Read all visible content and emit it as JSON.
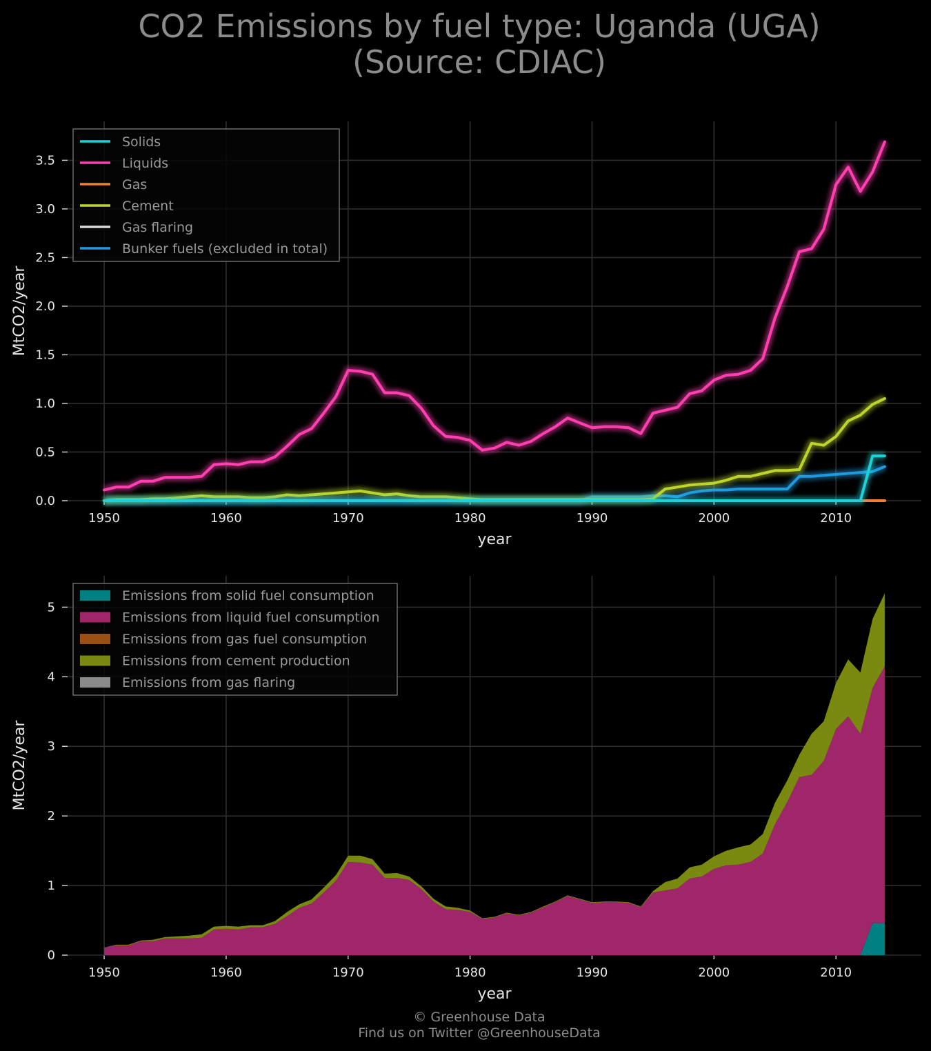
{
  "title": {
    "line1": "CO2 Emissions by fuel type: Uganda (UGA)",
    "line2": "(Source: CDIAC)"
  },
  "credits": {
    "line1": "© Greenhouse Data",
    "line2": "Find us on Twitter @GreenhouseData"
  },
  "colors": {
    "background": "#000000",
    "grid": "#2f2f2f",
    "solids": "#1fd0d8",
    "liquids": "#ff3fb0",
    "gas": "#f07d3a",
    "cement": "#bcd42c",
    "gas_flaring": "#d8d8d8",
    "bunker": "#1e9be0",
    "solid_area": "#008080",
    "liquid_area": "#a0266a",
    "gas_area": "#9a4f14",
    "cement_area": "#7a8a10",
    "flaring_area": "#8a8a8a"
  },
  "chart_data": [
    {
      "type": "line",
      "xlabel": "year",
      "ylabel": "MtCO2/year",
      "xlim": [
        1947,
        2017
      ],
      "ylim": [
        0,
        3.9
      ],
      "xticks": [
        1950,
        1960,
        1970,
        1980,
        1990,
        2000,
        2010
      ],
      "yticks": [
        0.0,
        0.5,
        1.0,
        1.5,
        2.0,
        2.5,
        3.0,
        3.5
      ],
      "ytick_labels": [
        "0.0",
        "0.5",
        "1.0",
        "1.5",
        "2.0",
        "2.5",
        "3.0",
        "3.5"
      ],
      "grid": true,
      "legend_position": "top-left",
      "x": [
        1950,
        1951,
        1952,
        1953,
        1954,
        1955,
        1956,
        1957,
        1958,
        1959,
        1960,
        1961,
        1962,
        1963,
        1964,
        1965,
        1966,
        1967,
        1968,
        1969,
        1970,
        1971,
        1972,
        1973,
        1974,
        1975,
        1976,
        1977,
        1978,
        1979,
        1980,
        1981,
        1982,
        1983,
        1984,
        1985,
        1986,
        1987,
        1988,
        1989,
        1990,
        1991,
        1992,
        1993,
        1994,
        1995,
        1996,
        1997,
        1998,
        1999,
        2000,
        2001,
        2002,
        2003,
        2004,
        2005,
        2006,
        2007,
        2008,
        2009,
        2010,
        2011,
        2012,
        2013,
        2014
      ],
      "series": [
        {
          "name": "Solids",
          "color_key": "solids",
          "values": [
            0,
            0,
            0,
            0,
            0,
            0,
            0,
            0,
            0,
            0,
            0,
            0,
            0,
            0,
            0,
            0,
            0,
            0,
            0,
            0,
            0,
            0,
            0,
            0,
            0,
            0,
            0,
            0,
            0,
            0,
            0,
            0,
            0,
            0,
            0,
            0,
            0,
            0,
            0,
            0,
            0,
            0,
            0,
            0,
            0,
            0,
            0,
            0,
            0,
            0,
            0,
            0,
            0,
            0,
            0,
            0,
            0,
            0,
            0,
            0,
            0,
            0,
            0,
            0.46,
            0.46
          ]
        },
        {
          "name": "Liquids",
          "color_key": "liquids",
          "values": [
            0.11,
            0.14,
            0.14,
            0.2,
            0.2,
            0.24,
            0.24,
            0.24,
            0.25,
            0.37,
            0.38,
            0.37,
            0.4,
            0.4,
            0.45,
            0.56,
            0.68,
            0.74,
            0.9,
            1.07,
            1.34,
            1.33,
            1.3,
            1.11,
            1.11,
            1.08,
            0.95,
            0.77,
            0.66,
            0.65,
            0.62,
            0.52,
            0.54,
            0.6,
            0.57,
            0.61,
            0.69,
            0.76,
            0.85,
            0.8,
            0.75,
            0.76,
            0.76,
            0.75,
            0.69,
            0.9,
            0.93,
            0.96,
            1.1,
            1.13,
            1.24,
            1.29,
            1.3,
            1.34,
            1.46,
            1.88,
            2.2,
            2.56,
            2.59,
            2.79,
            3.25,
            3.43,
            3.18,
            3.38,
            3.69
          ]
        },
        {
          "name": "Gas",
          "color_key": "gas",
          "values": [
            0,
            0,
            0,
            0,
            0,
            0,
            0,
            0,
            0,
            0,
            0,
            0,
            0,
            0,
            0,
            0,
            0,
            0,
            0,
            0,
            0,
            0,
            0,
            0,
            0,
            0,
            0,
            0,
            0,
            0,
            0,
            0,
            0,
            0,
            0,
            0,
            0,
            0,
            0,
            0,
            0,
            0,
            0,
            0,
            0,
            0,
            0,
            0,
            0,
            0,
            0,
            0,
            0,
            0,
            0,
            0,
            0,
            0,
            0,
            0,
            0,
            0,
            0,
            0,
            0
          ]
        },
        {
          "name": "Cement",
          "color_key": "cement",
          "values": [
            0.0,
            0.01,
            0.01,
            0.01,
            0.02,
            0.02,
            0.03,
            0.04,
            0.05,
            0.04,
            0.04,
            0.04,
            0.03,
            0.03,
            0.04,
            0.06,
            0.05,
            0.06,
            0.07,
            0.08,
            0.09,
            0.1,
            0.08,
            0.06,
            0.07,
            0.05,
            0.04,
            0.04,
            0.04,
            0.03,
            0.02,
            0.01,
            0.01,
            0.01,
            0.01,
            0.01,
            0.01,
            0.01,
            0.01,
            0.01,
            0.01,
            0.01,
            0.01,
            0.01,
            0.01,
            0.02,
            0.12,
            0.14,
            0.16,
            0.17,
            0.18,
            0.21,
            0.25,
            0.25,
            0.28,
            0.31,
            0.31,
            0.32,
            0.59,
            0.57,
            0.66,
            0.82,
            0.88,
            0.99,
            1.05
          ]
        },
        {
          "name": "Gas flaring",
          "color_key": "gas_flaring",
          "values": [
            0,
            0,
            0,
            0,
            0,
            0,
            0,
            0,
            0,
            0,
            0,
            0,
            0,
            0,
            0,
            0,
            0,
            0,
            0,
            0,
            0,
            0,
            0,
            0,
            0,
            0,
            0,
            0,
            0,
            0,
            0,
            0,
            0,
            0,
            0,
            0,
            0,
            0,
            0,
            0,
            0,
            0,
            0,
            0,
            0,
            0,
            0,
            0,
            0,
            0,
            0,
            0,
            0,
            0,
            0,
            0,
            0,
            0,
            0,
            0,
            0,
            0,
            0,
            0,
            0
          ]
        },
        {
          "name": "Bunker fuels (excluded in total)",
          "color_key": "bunker",
          "values": [
            0,
            0,
            0,
            0,
            0,
            0,
            0,
            0,
            0,
            0,
            0,
            0,
            0,
            0,
            0,
            0,
            0,
            0,
            0,
            0,
            0,
            0,
            0,
            0,
            0,
            0,
            0,
            0,
            0,
            0,
            0,
            0,
            0,
            0,
            0,
            0,
            0,
            0,
            0,
            0,
            0.04,
            0.04,
            0.04,
            0.04,
            0.04,
            0.05,
            0.05,
            0.04,
            0.08,
            0.1,
            0.11,
            0.11,
            0.12,
            0.12,
            0.12,
            0.12,
            0.12,
            0.25,
            0.25,
            0.26,
            0.27,
            0.28,
            0.29,
            0.3,
            0.35
          ]
        }
      ]
    },
    {
      "type": "area",
      "stacked": true,
      "xlabel": "year",
      "ylabel": "MtCO2/year",
      "xlim": [
        1947,
        2017
      ],
      "ylim": [
        0,
        5.45
      ],
      "xticks": [
        1950,
        1960,
        1970,
        1980,
        1990,
        2000,
        2010
      ],
      "yticks": [
        0,
        1,
        2,
        3,
        4,
        5
      ],
      "ytick_labels": [
        "0",
        "1",
        "2",
        "3",
        "4",
        "5"
      ],
      "grid": true,
      "legend_position": "top-left",
      "series": [
        {
          "name": "Emissions from solid fuel consumption",
          "color_key": "solid_area",
          "source": "Solids"
        },
        {
          "name": "Emissions from liquid fuel consumption",
          "color_key": "liquid_area",
          "source": "Liquids"
        },
        {
          "name": "Emissions from gas fuel consumption",
          "color_key": "gas_area",
          "source": "Gas"
        },
        {
          "name": "Emissions from cement production",
          "color_key": "cement_area",
          "source": "Cement"
        },
        {
          "name": "Emissions from gas flaring",
          "color_key": "flaring_area",
          "source": "Gas flaring"
        }
      ]
    }
  ]
}
